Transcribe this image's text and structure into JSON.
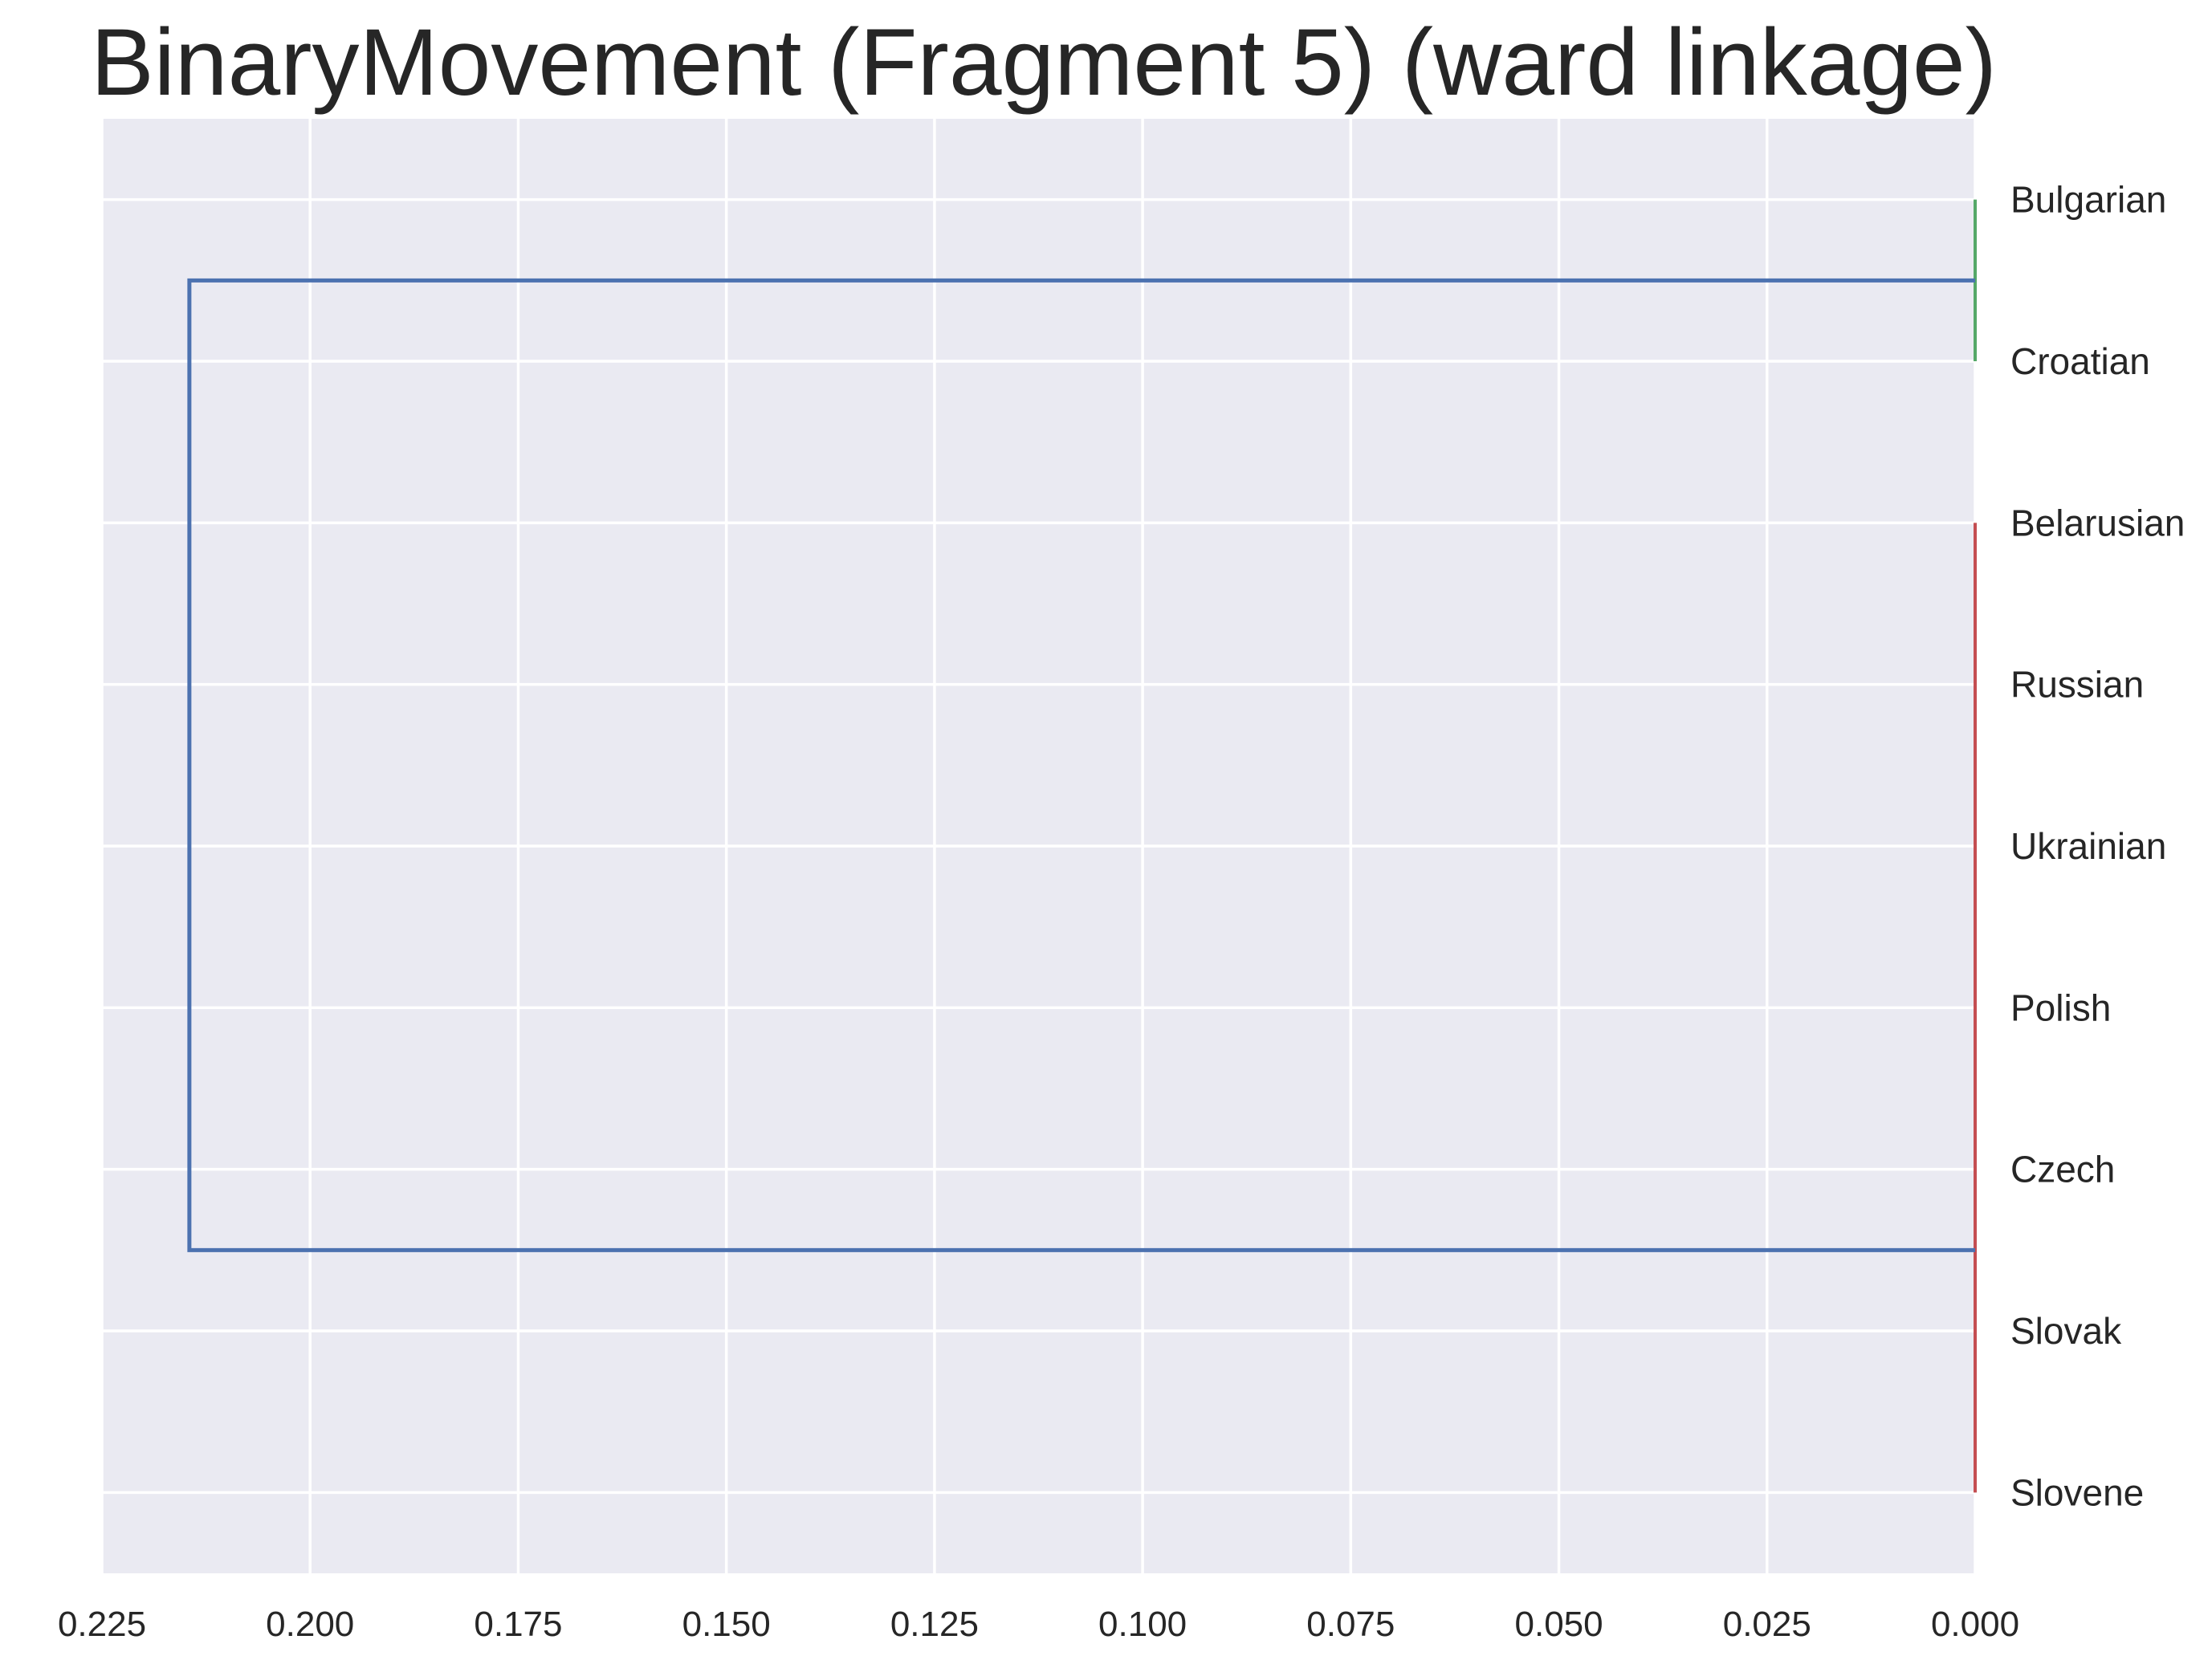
{
  "chart_data": {
    "type": "dendrogram",
    "title": "BinaryMovement (Fragment 5) (ward linkage)",
    "orientation": "left",
    "xlim": [
      0.225,
      0.0
    ],
    "x_ticks": [
      0.225,
      0.2,
      0.175,
      0.15,
      0.125,
      0.1,
      0.075,
      0.05,
      0.025,
      0.0
    ],
    "x_tick_labels": [
      "0.225",
      "0.200",
      "0.175",
      "0.150",
      "0.125",
      "0.100",
      "0.075",
      "0.050",
      "0.025",
      "0.000"
    ],
    "leaves": [
      "Bulgarian",
      "Croatian",
      "Belarusian",
      "Russian",
      "Ukrainian",
      "Polish",
      "Czech",
      "Slovak",
      "Slovene"
    ],
    "grid": true,
    "background": "#EAEAF2",
    "clusters": [
      {
        "members": [
          "Bulgarian",
          "Croatian"
        ],
        "height": 0.0,
        "color": "#55A868"
      },
      {
        "members": [
          "Belarusian",
          "Russian",
          "Ukrainian",
          "Polish",
          "Czech",
          "Slovak",
          "Slovene"
        ],
        "height": 0.0,
        "color": "#C44E52"
      }
    ],
    "root_link": {
      "height": 0.2145,
      "color": "#4C72B0"
    }
  }
}
